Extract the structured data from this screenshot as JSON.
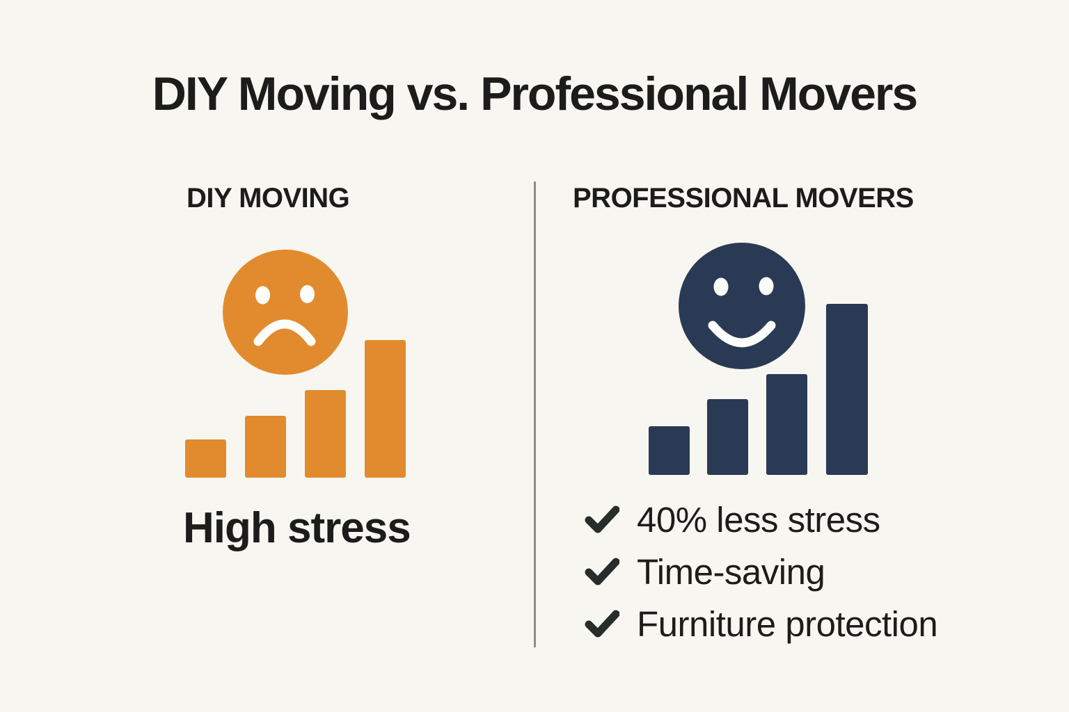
{
  "title": "DIY Moving vs. Professional Movers",
  "columns": {
    "left": {
      "header": "DIY MOVING",
      "icon": "sad-face-rising-bars-icon",
      "caption": "High stress",
      "color": "#E28B2E",
      "bars": [
        55,
        89,
        126,
        198
      ]
    },
    "right": {
      "header": "PROFESSIONAL MOVERS",
      "icon": "happy-face-rising-bars-icon",
      "color": "#2A3A54",
      "bars": [
        70,
        109,
        145,
        246
      ],
      "benefits": [
        {
          "icon": "check-icon",
          "label": "40% less stress"
        },
        {
          "icon": "check-icon",
          "label": "Time-saving"
        },
        {
          "icon": "check-icon",
          "label": "Furniture protection"
        }
      ]
    }
  },
  "colors": {
    "background": "#F8F6F1",
    "text": "#1C1C1A",
    "divider": "#8D8D8D",
    "check": "#272D2A",
    "knockout_white": "#FDFDFC"
  }
}
